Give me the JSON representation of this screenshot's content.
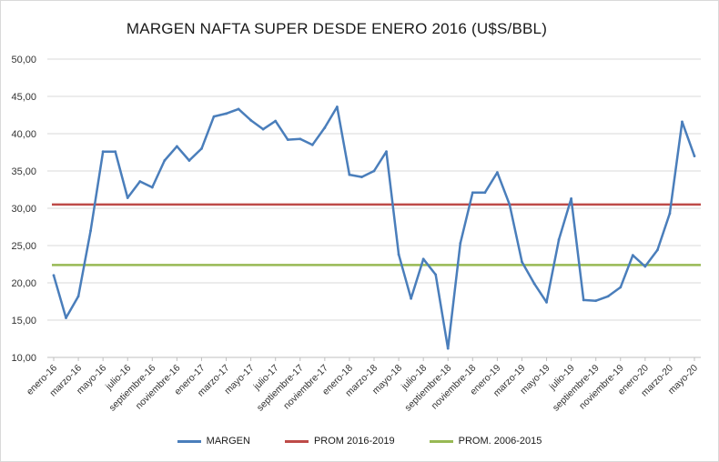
{
  "chart_data": {
    "type": "line",
    "title": "MARGEN NAFTA SUPER DESDE ENERO 2016 (U$S/BBL)",
    "xlabel": "",
    "ylabel": "",
    "ylim": [
      10,
      50
    ],
    "yticks": [
      "10,00",
      "15,00",
      "20,00",
      "25,00",
      "30,00",
      "35,00",
      "40,00",
      "45,00",
      "50,00"
    ],
    "grid": true,
    "legend_position": "bottom",
    "categories": [
      "ene-16",
      "feb-16",
      "mar-16",
      "abr-16",
      "may-16",
      "jun-16",
      "jul-16",
      "ago-16",
      "sep-16",
      "oct-16",
      "nov-16",
      "dic-16",
      "ene-17",
      "feb-17",
      "mar-17",
      "abr-17",
      "may-17",
      "jun-17",
      "jul-17",
      "ago-17",
      "sep-17",
      "oct-17",
      "nov-17",
      "dic-17",
      "ene-18",
      "feb-18",
      "mar-18",
      "abr-18",
      "may-18",
      "jun-18",
      "jul-18",
      "ago-18",
      "sep-18",
      "oct-18",
      "nov-18",
      "dic-18",
      "ene-19",
      "feb-19",
      "mar-19",
      "abr-19",
      "may-19",
      "jun-19",
      "jul-19",
      "ago-19",
      "sep-19",
      "oct-19",
      "nov-19",
      "dic-19",
      "ene-20",
      "feb-20",
      "mar-20",
      "abr-20",
      "may-20"
    ],
    "tick_labels": [
      "enero-16",
      "marzo-16",
      "mayo-16",
      "julio-16",
      "septiembre-16",
      "noviembre-16",
      "enero-17",
      "marzo-17",
      "mayo-17",
      "julio-17",
      "septiembre-17",
      "noviembre-17",
      "enero-18",
      "marzo-18",
      "mayo-18",
      "julio-18",
      "septiembre-18",
      "noviembre-18",
      "enero-19",
      "marzo-19",
      "mayo-19",
      "julio-19",
      "septiembre-19",
      "noviembre-19",
      "enero-20",
      "marzo-20",
      "mayo-20"
    ],
    "series": [
      {
        "name": "MARGEN",
        "color": "#4a7ebb",
        "values": [
          21.0,
          15.3,
          18.2,
          27.0,
          37.6,
          37.6,
          31.4,
          33.6,
          32.8,
          36.4,
          38.3,
          36.4,
          38.0,
          42.3,
          42.7,
          43.3,
          41.8,
          40.6,
          41.7,
          39.2,
          39.3,
          38.5,
          40.8,
          43.6,
          34.5,
          34.2,
          35.0,
          37.6,
          23.8,
          17.9,
          23.2,
          21.1,
          11.2,
          25.3,
          32.1,
          32.1,
          34.8,
          30.5,
          22.8,
          19.9,
          17.4,
          25.8,
          31.3,
          17.7,
          17.6,
          18.2,
          19.4,
          23.7,
          22.2,
          24.4,
          29.3,
          41.6,
          37.0
        ]
      },
      {
        "name": "PROM 2016-2019",
        "color": "#be4b48",
        "values_constant": 30.5
      },
      {
        "name": "PROM. 2006-2015",
        "color": "#98b954",
        "values_constant": 22.4
      }
    ]
  }
}
